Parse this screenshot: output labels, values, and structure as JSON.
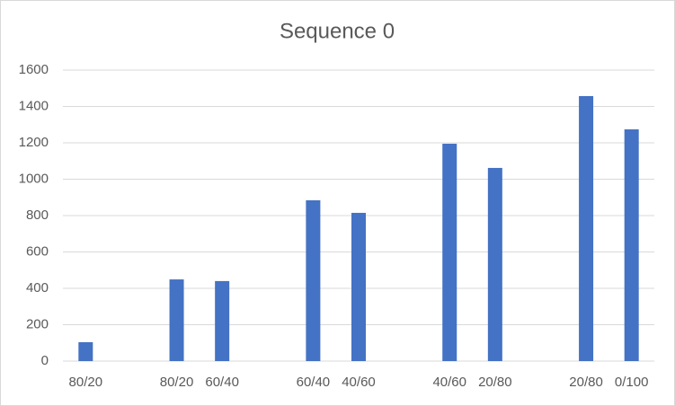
{
  "chart_data": {
    "type": "bar",
    "title": "Sequence 0",
    "categories": [
      "80/20",
      null,
      "80/20",
      "60/40",
      null,
      "60/40",
      "40/60",
      null,
      "40/60",
      "20/80",
      null,
      "20/80",
      "0/100"
    ],
    "values": [
      104,
      null,
      449,
      440,
      null,
      884,
      815,
      null,
      1195,
      1062,
      null,
      1457,
      1274
    ],
    "color": "#4472c4",
    "ylim": [
      0,
      1600
    ],
    "yticks": [
      0,
      200,
      400,
      600,
      800,
      1000,
      1200,
      1400,
      1600
    ],
    "grid": true
  }
}
